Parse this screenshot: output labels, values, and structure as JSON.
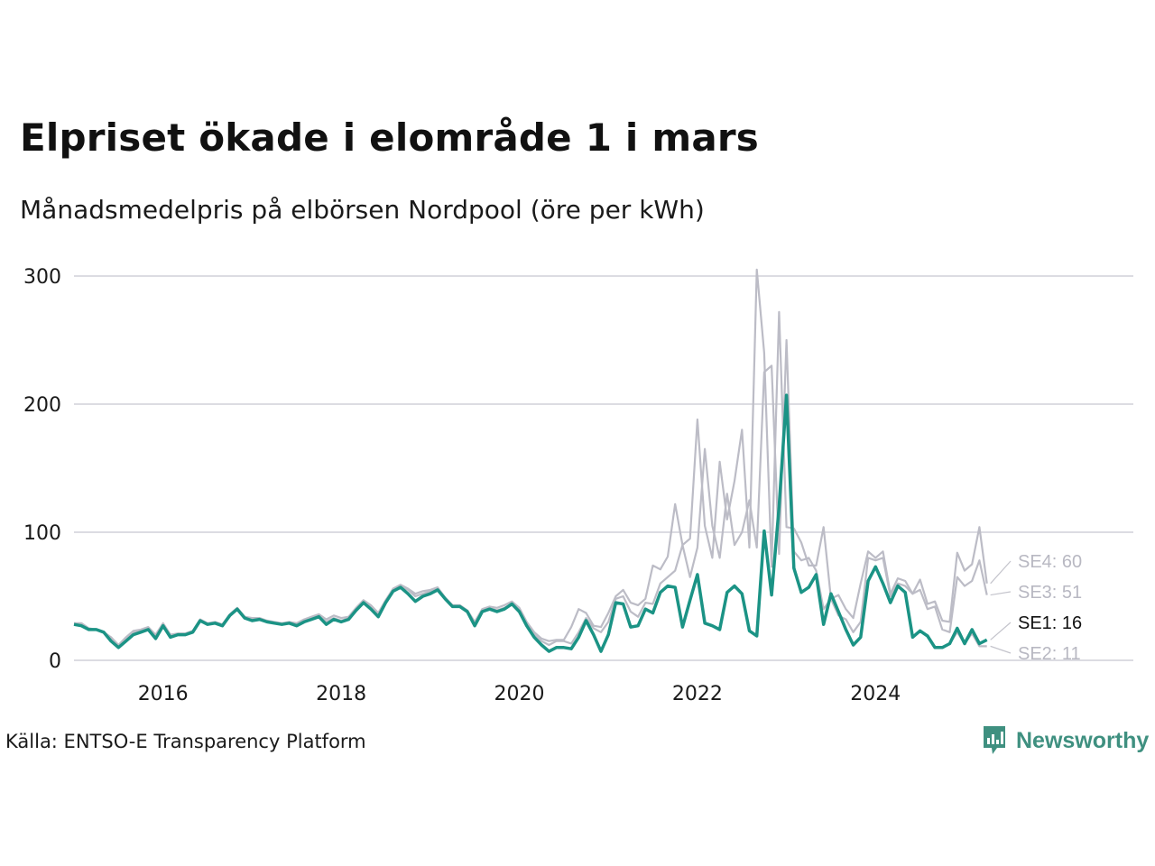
{
  "title": "Elpriset ökade i elområde 1 i mars",
  "subtitle": "Månadsmedelpris på elbörsen Nordpool (öre per kWh)",
  "source": "Källa: ENTSO-E Transparency Platform",
  "brand": {
    "name": "Newsworthy",
    "icon": "newsworthy-logo-icon",
    "color": "#3f9080"
  },
  "chart_data": {
    "type": "line",
    "title": "Elpriset ökade i elområde 1 i mars",
    "subtitle": "Månadsmedelpris på elbörsen Nordpool (öre per kWh)",
    "x_start": "2015-01",
    "x_end": "2025-03",
    "x_tick_labels": [
      "2016",
      "2018",
      "2020",
      "2022",
      "2024"
    ],
    "y_ticks": [
      0,
      100,
      200,
      300
    ],
    "ylim": [
      0,
      310
    ],
    "grid": "horizontal",
    "legend": "end-of-line labels",
    "series": [
      {
        "name": "SE1",
        "end_label": "SE1: 16",
        "color": "#1b9385",
        "highlight": true,
        "values": [
          28,
          27,
          24,
          24,
          22,
          15,
          10,
          15,
          20,
          22,
          24,
          17,
          27,
          18,
          20,
          20,
          22,
          31,
          28,
          29,
          27,
          35,
          40,
          33,
          31,
          32,
          30,
          29,
          28,
          29,
          27,
          30,
          32,
          34,
          28,
          32,
          30,
          32,
          39,
          45,
          40,
          34,
          45,
          54,
          57,
          52,
          46,
          50,
          52,
          55,
          48,
          42,
          42,
          38,
          27,
          38,
          40,
          38,
          40,
          44,
          38,
          27,
          18,
          12,
          7,
          10,
          10,
          9,
          18,
          31,
          20,
          7,
          20,
          45,
          44,
          26,
          27,
          40,
          37,
          53,
          58,
          57,
          26,
          47,
          67,
          29,
          27,
          24,
          53,
          58,
          52,
          23,
          19,
          101,
          51,
          120,
          207,
          72,
          53,
          57,
          67,
          28,
          52,
          38,
          24,
          12,
          18,
          62,
          73,
          60,
          45,
          58,
          53,
          18,
          23,
          19,
          10,
          10,
          13,
          25,
          13,
          24,
          13,
          16
        ]
      },
      {
        "name": "SE2",
        "end_label": "SE2: 11",
        "color": "#bcbcc6",
        "highlight": false,
        "values": [
          28,
          27,
          24,
          24,
          22,
          15,
          10,
          15,
          20,
          22,
          24,
          17,
          27,
          18,
          20,
          20,
          22,
          31,
          28,
          29,
          27,
          35,
          40,
          33,
          31,
          32,
          30,
          29,
          28,
          29,
          27,
          30,
          32,
          34,
          28,
          32,
          30,
          32,
          39,
          45,
          40,
          34,
          45,
          54,
          57,
          52,
          46,
          50,
          52,
          55,
          48,
          42,
          42,
          38,
          27,
          38,
          40,
          38,
          40,
          44,
          38,
          27,
          18,
          12,
          7,
          10,
          10,
          9,
          18,
          31,
          20,
          7,
          20,
          45,
          44,
          26,
          27,
          40,
          37,
          53,
          58,
          57,
          26,
          47,
          67,
          29,
          27,
          24,
          53,
          58,
          52,
          23,
          19,
          101,
          51,
          120,
          207,
          72,
          53,
          57,
          67,
          28,
          52,
          38,
          24,
          12,
          18,
          62,
          73,
          60,
          45,
          58,
          53,
          18,
          23,
          19,
          10,
          10,
          13,
          22,
          13,
          21,
          11,
          11
        ]
      },
      {
        "name": "SE3",
        "end_label": "SE3: 51",
        "color": "#bcbcc6",
        "highlight": false,
        "values": [
          29,
          28,
          24,
          24,
          22,
          17,
          11,
          17,
          22,
          23,
          25,
          18,
          28,
          19,
          20,
          20,
          22,
          31,
          28,
          29,
          28,
          35,
          40,
          33,
          32,
          32,
          30,
          29,
          28,
          29,
          28,
          31,
          33,
          35,
          30,
          33,
          31,
          33,
          40,
          46,
          42,
          35,
          46,
          55,
          58,
          55,
          50,
          52,
          54,
          56,
          48,
          42,
          42,
          38,
          28,
          39,
          41,
          39,
          41,
          44,
          39,
          28,
          20,
          15,
          12,
          15,
          15,
          13,
          22,
          33,
          25,
          22,
          30,
          48,
          50,
          38,
          34,
          45,
          44,
          60,
          65,
          70,
          90,
          65,
          88,
          165,
          105,
          80,
          130,
          90,
          100,
          125,
          88,
          225,
          230,
          83,
          250,
          85,
          78,
          80,
          70,
          40,
          48,
          35,
          32,
          22,
          30,
          80,
          78,
          80,
          50,
          60,
          58,
          52,
          55,
          40,
          42,
          24,
          22,
          65,
          58,
          62,
          78,
          51
        ]
      },
      {
        "name": "SE4",
        "end_label": "SE4: 60",
        "color": "#bcbcc6",
        "highlight": false,
        "values": [
          29,
          29,
          25,
          24,
          22,
          18,
          12,
          18,
          23,
          24,
          26,
          20,
          29,
          20,
          21,
          21,
          23,
          32,
          29,
          30,
          28,
          36,
          41,
          34,
          33,
          33,
          31,
          30,
          29,
          30,
          29,
          32,
          34,
          36,
          32,
          35,
          33,
          34,
          41,
          47,
          43,
          37,
          47,
          56,
          59,
          56,
          52,
          54,
          55,
          57,
          49,
          43,
          43,
          39,
          30,
          40,
          42,
          41,
          43,
          46,
          41,
          30,
          22,
          17,
          15,
          16,
          16,
          26,
          40,
          37,
          27,
          26,
          37,
          50,
          55,
          45,
          43,
          48,
          74,
          71,
          81,
          122,
          90,
          95,
          188,
          105,
          80,
          155,
          110,
          140,
          180,
          88,
          305,
          240,
          73,
          272,
          104,
          103,
          92,
          74,
          74,
          104,
          48,
          51,
          40,
          33,
          60,
          85,
          80,
          85,
          52,
          64,
          62,
          52,
          63,
          44,
          46,
          31,
          30,
          84,
          70,
          75,
          104,
          60
        ]
      }
    ]
  }
}
